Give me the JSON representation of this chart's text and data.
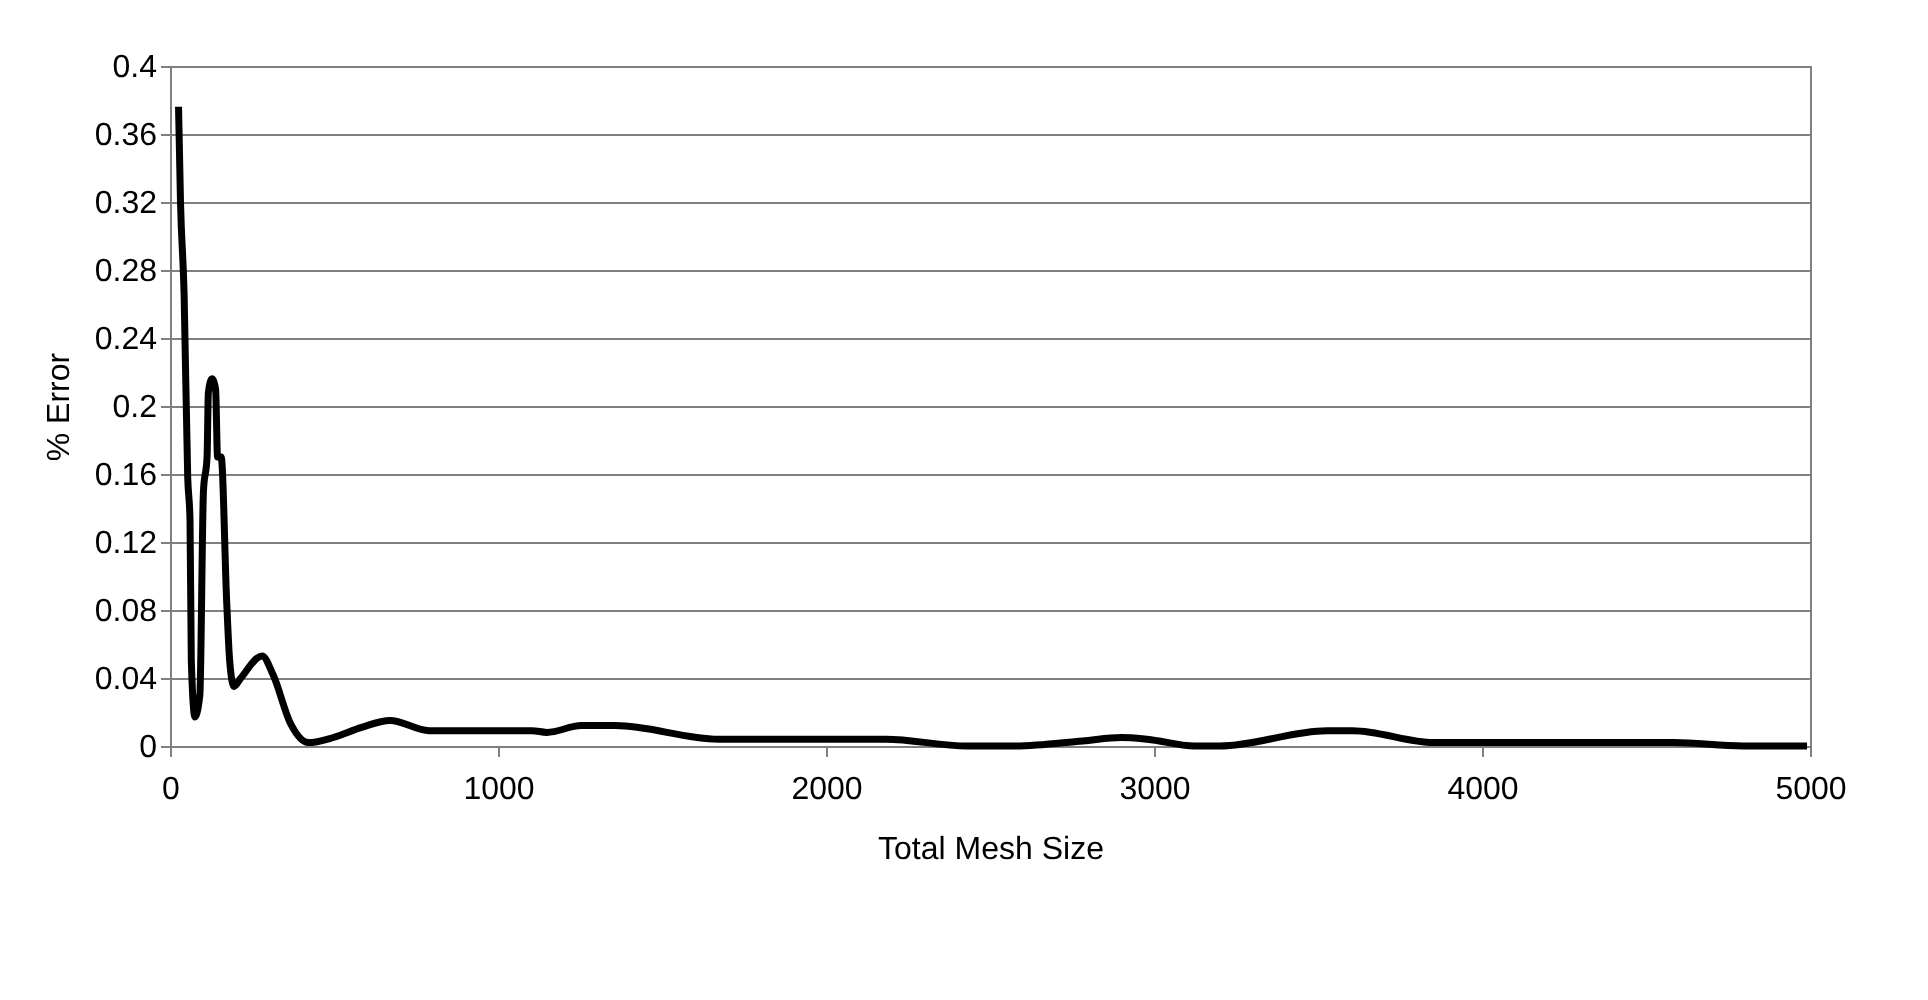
{
  "chart_data": {
    "type": "line",
    "xlabel": "Total Mesh Size",
    "ylabel": "% Error",
    "xlim": [
      0,
      5000
    ],
    "xticks": [
      0,
      1000,
      2000,
      3000,
      4000,
      5000
    ],
    "ylim": [
      0,
      0.4
    ],
    "yticks": [
      0,
      0.04,
      0.08,
      0.12,
      0.16,
      0.2,
      0.24,
      0.28,
      0.32,
      0.36,
      0.4
    ],
    "grid": "y",
    "legend": false,
    "marker": "none",
    "line_style": "solid",
    "x": [
      26,
      32,
      43,
      54,
      61,
      65,
      76,
      91,
      102,
      113,
      117,
      128,
      139,
      145,
      156,
      173,
      182,
      195,
      216,
      281,
      314,
      368,
      422,
      498,
      584,
      671,
      790,
      1104,
      1149,
      1254,
      1358,
      1672,
      2182,
      2430,
      2573,
      2783,
      2900,
      2979,
      3123,
      3201,
      3527,
      3606,
      3854,
      4586,
      4795,
      4991
    ],
    "series": [
      {
        "color": "#000000",
        "values": [
          0.376,
          0.32,
          0.266,
          0.158,
          0.133,
          0.05,
          0.017,
          0.03,
          0.15,
          0.17,
          0.208,
          0.216,
          0.21,
          0.17,
          0.17,
          0.084,
          0.05,
          0.035,
          0.04,
          0.053,
          0.042,
          0.013,
          0.002,
          0.005,
          0.011,
          0.015,
          0.009,
          0.009,
          0.008,
          0.012,
          0.012,
          0.004,
          0.004,
          0,
          0,
          0.003,
          0.005,
          0.004,
          0,
          0,
          0.009,
          0.009,
          0.002,
          0.002,
          0,
          0
        ]
      }
    ]
  }
}
